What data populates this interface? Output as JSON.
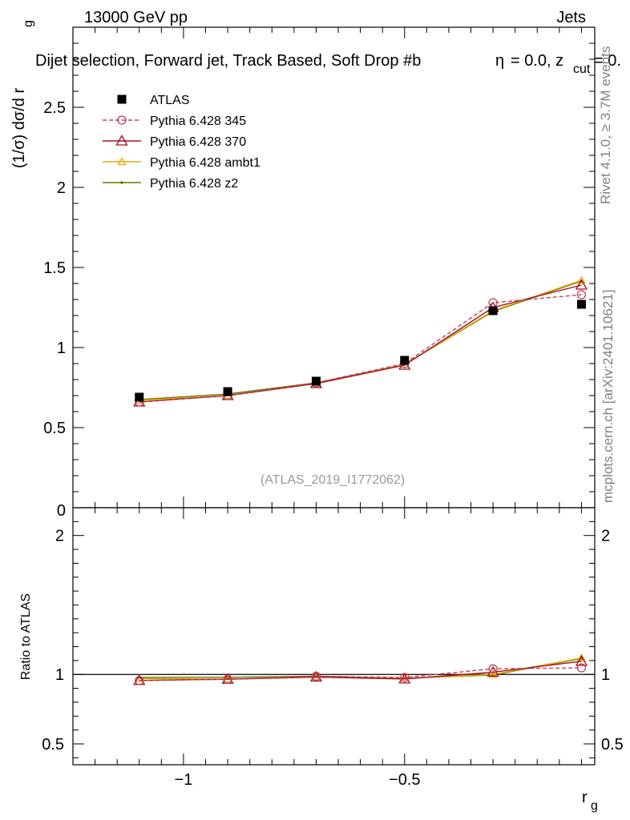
{
  "header": {
    "energy_label": "13000 GeV pp",
    "process_label": "Jets",
    "plot_title": "Dijet selection, Forward jet, Track Based, Soft Drop #b",
    "title_suffix": "= 0.0, z",
    "title_sub": "cut",
    "title_tail": "= 0.",
    "eta_symbol": "η"
  },
  "side_labels": {
    "rivet": "Rivet 4.1.0, ≥ 3.7M events",
    "mcplots": "mcplots.cern.ch [arXiv:2401.10621]"
  },
  "watermark": "(ATLAS_2019_I1772062)",
  "chart_data": {
    "type": "line",
    "title": "Dijet selection, Forward jet, Track Based, Soft Drop #b = 0.0, z_cut = 0.",
    "xlabel": "r",
    "xlabel_sub": "g",
    "ylabel": "(1/σ) dσ/d r",
    "ylabel_sub": "g",
    "ratio_ylabel": "Ratio to ATLAS",
    "xlim": [
      -1.25,
      -0.07
    ],
    "ylim": [
      0,
      3.0
    ],
    "ratio_ylim": [
      0.35,
      2.2
    ],
    "x_ticks": [
      -1,
      -0.5
    ],
    "x_tick_labels": [
      "−1",
      "−0.5"
    ],
    "y_ticks": [
      0.5,
      1,
      1.5,
      2,
      2.5
    ],
    "y_tick_labels": [
      "0.5",
      "1",
      "1.5",
      "2",
      "2.5"
    ],
    "y_zero_label": "0",
    "ratio_ticks": [
      0.5,
      1,
      2
    ],
    "ratio_tick_labels": [
      "0.5",
      "1",
      "2"
    ],
    "x": [
      -1.1,
      -0.9,
      -0.7,
      -0.5,
      -0.3,
      -0.1
    ],
    "reference": {
      "name": "ATLAS",
      "values": [
        0.69,
        0.725,
        0.79,
        0.92,
        1.23,
        1.27
      ],
      "color": "#000000"
    },
    "series": [
      {
        "name": "Pythia 6.428 345",
        "values": [
          0.66,
          0.7,
          0.78,
          0.9,
          1.28,
          1.33
        ],
        "color": "#c0405a",
        "style": "dashed",
        "marker": "circle"
      },
      {
        "name": "Pythia 6.428 370",
        "values": [
          0.66,
          0.7,
          0.775,
          0.89,
          1.25,
          1.39
        ],
        "color": "#a01020",
        "style": "solid",
        "marker": "triangle"
      },
      {
        "name": "Pythia 6.428 ambt1",
        "values": [
          0.67,
          0.7,
          0.775,
          0.895,
          1.23,
          1.42
        ],
        "color": "#e8a800",
        "style": "solid",
        "marker": "triangle-small"
      },
      {
        "name": "Pythia 6.428 z2",
        "values": [
          0.675,
          0.71,
          0.78,
          0.895,
          1.225,
          1.415
        ],
        "color": "#6b7a00",
        "style": "solid",
        "marker": "dot"
      }
    ]
  }
}
